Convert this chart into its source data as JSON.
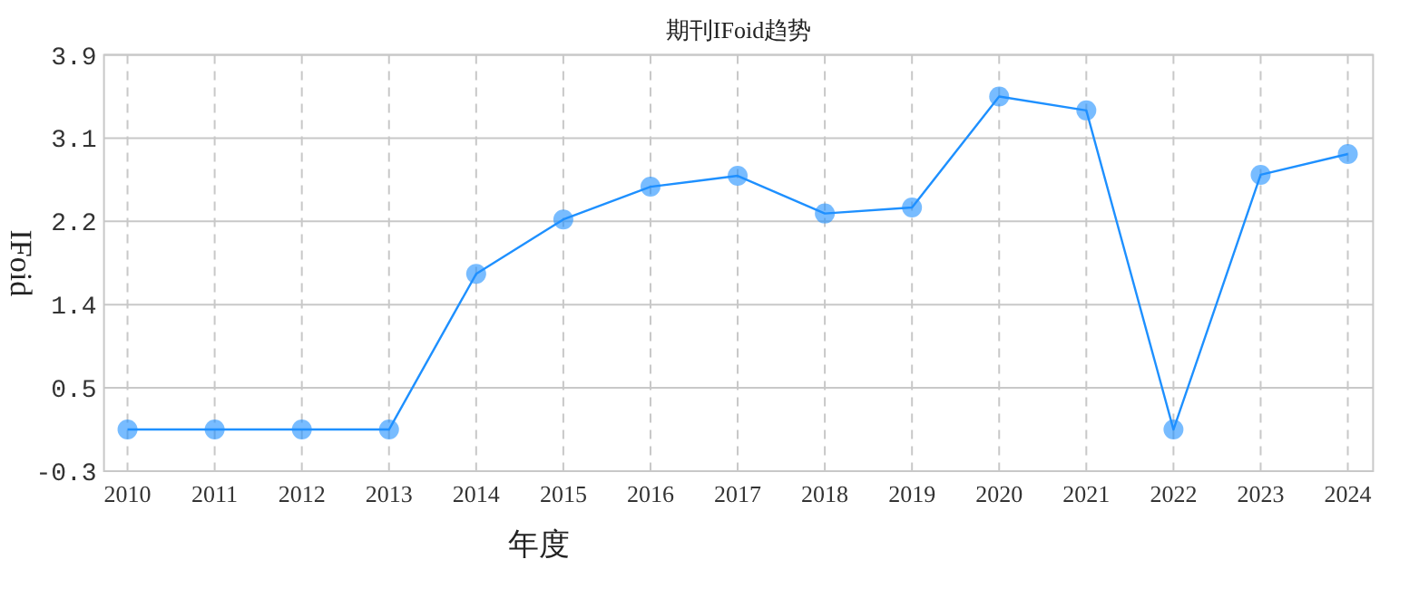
{
  "chart_data": {
    "type": "line",
    "title": "期刊IFoid趋势",
    "xlabel": "年度",
    "ylabel": "IFoid",
    "categories": [
      "2010",
      "2011",
      "2012",
      "2013",
      "2014",
      "2015",
      "2016",
      "2017",
      "2018",
      "2019",
      "2020",
      "2021",
      "2022",
      "2023",
      "2024"
    ],
    "series": [
      {
        "color": "#1e90ff",
        "values": [
          0.12,
          0.12,
          0.12,
          0.12,
          1.69,
          2.24,
          2.57,
          2.68,
          2.3,
          2.36,
          3.48,
          3.34,
          0.12,
          2.69,
          2.9
        ]
      }
    ],
    "ylim": [
      -0.3,
      3.9
    ],
    "yticks": [
      -0.3,
      {
        "value": 0.54,
        "label": "0.5"
      },
      {
        "value": 1.38,
        "label": "1.4"
      },
      {
        "value": 2.22,
        "label": "2.2"
      },
      {
        "value": 3.06,
        "label": "3.1"
      },
      3.9
    ],
    "grid": true,
    "marker": "circle"
  }
}
